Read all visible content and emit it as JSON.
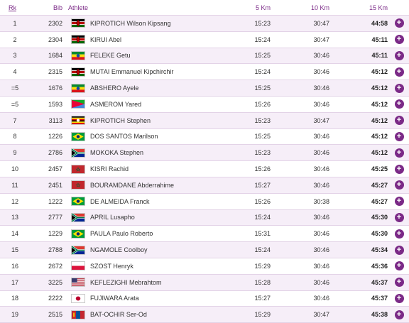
{
  "headers": {
    "rank": "Rk",
    "bib": "Bib",
    "athlete": "Athlete",
    "k5": "5 Km",
    "k10": "10 Km",
    "k15": "15 Km"
  },
  "rows": [
    {
      "rank": "1",
      "bib": "2302",
      "flag": "ken",
      "athlete": "KIPROTICH Wilson Kipsang",
      "k5": "15:23",
      "k10": "30:47",
      "k15": "44:58",
      "more": "+"
    },
    {
      "rank": "2",
      "bib": "2304",
      "flag": "ken",
      "athlete": "KIRUI Abel",
      "k5": "15:24",
      "k10": "30:47",
      "k15": "45:11",
      "more": "+"
    },
    {
      "rank": "3",
      "bib": "1684",
      "flag": "eth",
      "athlete": "FELEKE Getu",
      "k5": "15:25",
      "k10": "30:46",
      "k15": "45:11",
      "more": "+"
    },
    {
      "rank": "4",
      "bib": "2315",
      "flag": "ken",
      "athlete": "MUTAI Emmanuel Kipchirchir",
      "k5": "15:24",
      "k10": "30:46",
      "k15": "45:12",
      "more": "+"
    },
    {
      "rank": "=5",
      "bib": "1676",
      "flag": "eth",
      "athlete": "ABSHERO Ayele",
      "k5": "15:25",
      "k10": "30:46",
      "k15": "45:12",
      "more": "+"
    },
    {
      "rank": "=5",
      "bib": "1593",
      "flag": "eri",
      "athlete": "ASMEROM Yared",
      "k5": "15:26",
      "k10": "30:46",
      "k15": "45:12",
      "more": "+"
    },
    {
      "rank": "7",
      "bib": "3113",
      "flag": "uga",
      "athlete": "KIPROTICH Stephen",
      "k5": "15:23",
      "k10": "30:47",
      "k15": "45:12",
      "more": "+"
    },
    {
      "rank": "8",
      "bib": "1226",
      "flag": "bra",
      "athlete": "DOS SANTOS Marilson",
      "k5": "15:25",
      "k10": "30:46",
      "k15": "45:12",
      "more": "+"
    },
    {
      "rank": "9",
      "bib": "2786",
      "flag": "rsa",
      "athlete": "MOKOKA Stephen",
      "k5": "15:23",
      "k10": "30:46",
      "k15": "45:12",
      "more": "+"
    },
    {
      "rank": "10",
      "bib": "2457",
      "flag": "mar",
      "athlete": "KISRI Rachid",
      "k5": "15:26",
      "k10": "30:46",
      "k15": "45:25",
      "more": "+"
    },
    {
      "rank": "11",
      "bib": "2451",
      "flag": "mar",
      "athlete": "BOURAMDANE Abderrahime",
      "k5": "15:27",
      "k10": "30:46",
      "k15": "45:27",
      "more": "+"
    },
    {
      "rank": "12",
      "bib": "1222",
      "flag": "bra",
      "athlete": "DE ALMEIDA Franck",
      "k5": "15:26",
      "k10": "30:38",
      "k15": "45:27",
      "more": "+"
    },
    {
      "rank": "13",
      "bib": "2777",
      "flag": "rsa",
      "athlete": "APRIL Lusapho",
      "k5": "15:24",
      "k10": "30:46",
      "k15": "45:30",
      "more": "+"
    },
    {
      "rank": "14",
      "bib": "1229",
      "flag": "bra",
      "athlete": "PAULA Paulo Roberto",
      "k5": "15:31",
      "k10": "30:46",
      "k15": "45:30",
      "more": "+"
    },
    {
      "rank": "15",
      "bib": "2788",
      "flag": "rsa",
      "athlete": "NGAMOLE Coolboy",
      "k5": "15:24",
      "k10": "30:46",
      "k15": "45:34",
      "more": "+"
    },
    {
      "rank": "16",
      "bib": "2672",
      "flag": "pol",
      "athlete": "SZOST Henryk",
      "k5": "15:29",
      "k10": "30:46",
      "k15": "45:36",
      "more": "+"
    },
    {
      "rank": "17",
      "bib": "3225",
      "flag": "usa",
      "athlete": "KEFLEZIGHI Mebrahtom",
      "k5": "15:28",
      "k10": "30:46",
      "k15": "45:37",
      "more": "+"
    },
    {
      "rank": "18",
      "bib": "2222",
      "flag": "jpn",
      "athlete": "FUJIWARA Arata",
      "k5": "15:27",
      "k10": "30:46",
      "k15": "45:37",
      "more": "+"
    },
    {
      "rank": "19",
      "bib": "2515",
      "flag": "mgl",
      "athlete": "BAT-OCHIR Ser-Od",
      "k5": "15:29",
      "k10": "30:47",
      "k15": "45:38",
      "more": "+"
    }
  ]
}
